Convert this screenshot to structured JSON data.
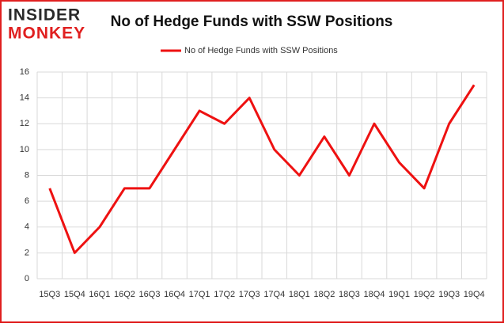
{
  "chart_data": {
    "type": "line",
    "brand": [
      "INSIDER",
      "MONKEY"
    ],
    "title": "No of Hedge Funds with SSW Positions",
    "categories": [
      "15Q3",
      "15Q4",
      "16Q1",
      "16Q2",
      "16Q3",
      "16Q4",
      "17Q1",
      "17Q2",
      "17Q3",
      "17Q4",
      "18Q1",
      "18Q2",
      "18Q3",
      "18Q4",
      "19Q1",
      "19Q2",
      "19Q3",
      "19Q4"
    ],
    "series": [
      {
        "name": "No of Hedge Funds with SSW Positions",
        "color": "#ee1111",
        "values": [
          7,
          2,
          4,
          7,
          7,
          10,
          13,
          12,
          14,
          10,
          8,
          11,
          8,
          12,
          9,
          7,
          12,
          15
        ]
      }
    ],
    "ylim": [
      0,
      16
    ],
    "yticks": [
      0,
      2,
      4,
      6,
      8,
      10,
      12,
      14,
      16
    ],
    "grid": true,
    "legend": "top"
  }
}
